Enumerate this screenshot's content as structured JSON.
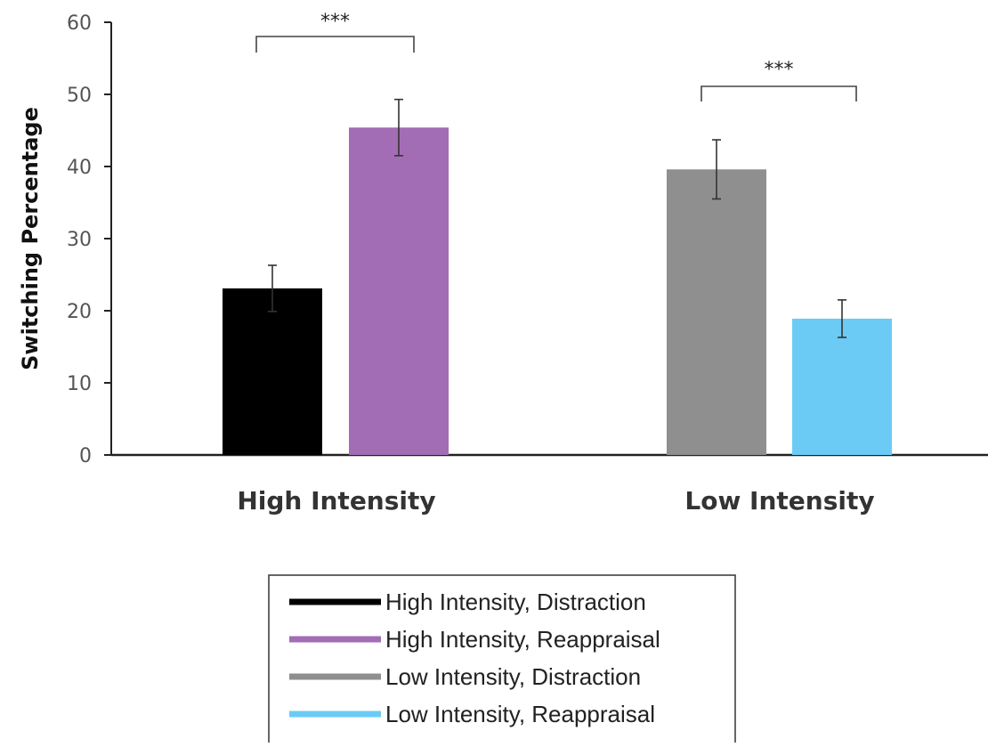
{
  "chart_data": {
    "type": "bar",
    "ylabel": "Switching Percentage",
    "xlabel": "",
    "ylim": [
      0,
      60
    ],
    "yticks": [
      0,
      10,
      20,
      30,
      40,
      50,
      60
    ],
    "categories": [
      "High Intensity",
      "Low Intensity"
    ],
    "bars": [
      {
        "name": "High Intensity, Distraction",
        "category": "High Intensity",
        "value": 23.1,
        "error": 3.2,
        "color": "#000000"
      },
      {
        "name": "High Intensity, Reappraisal",
        "category": "High Intensity",
        "value": 45.4,
        "error": 3.9,
        "color": "#A36DB5"
      },
      {
        "name": "Low Intensity, Distraction",
        "category": "Low Intensity",
        "value": 39.6,
        "error": 4.1,
        "color": "#8F8F8F"
      },
      {
        "name": "Low Intensity, Reappraisal",
        "category": "Low Intensity",
        "value": 18.9,
        "error": 2.6,
        "color": "#6BCBF5"
      }
    ],
    "significance": [
      {
        "category": "High Intensity",
        "label": "***"
      },
      {
        "category": "Low Intensity",
        "label": "***"
      }
    ],
    "legend": {
      "position": "bottom",
      "entries": [
        "High Intensity, Distraction",
        "High Intensity, Reappraisal",
        "Low Intensity, Distraction",
        "Low Intensity, Reappraisal"
      ]
    },
    "grid": false
  }
}
